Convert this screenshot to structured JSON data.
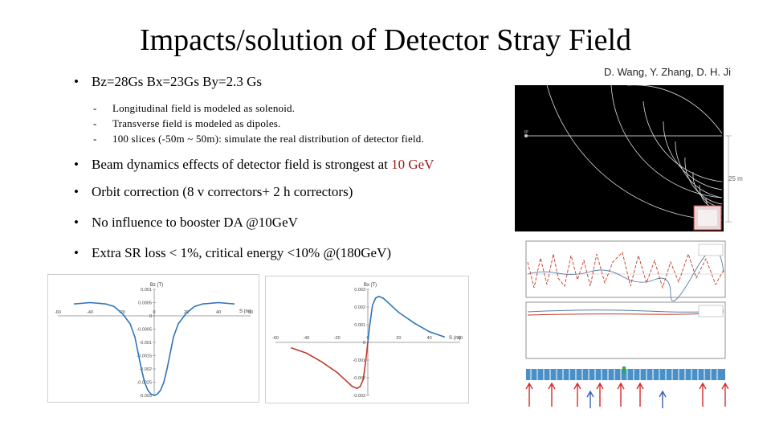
{
  "slide": {
    "title": "Impacts/solution of Detector Stray Field",
    "authors": "D. Wang, Y. Zhang, D. H. Ji",
    "bullet_top": "Bz=28Gs Bx=23Gs By=2.3 Gs",
    "subitems": [
      "Longitudinal field is modeled as solenoid.",
      "Transverse field is modeled as dipoles.",
      "100 slices (-50m ~ 50m): simulate the real distribution of detector field."
    ],
    "bullets": [
      {
        "pre": "Beam dynamics effects of detector field is strongest at ",
        "highlight": "10 GeV"
      },
      {
        "text": "Orbit correction (8 v correctors+ 2 h correctors)"
      },
      {
        "text": "No influence to booster DA @10GeV"
      },
      {
        "text": "Extra SR loss < 1%, critical energy <10% @(180GeV)"
      }
    ],
    "field_map": {
      "scale_label": "25 m",
      "marker_label": "IP"
    }
  },
  "chart_data": [
    {
      "type": "line",
      "title": "Bz (T)",
      "xlabel": "S (m)",
      "ylabel": "",
      "x_ticks": [
        -60,
        -40,
        -20,
        0,
        20,
        40,
        60
      ],
      "y_ticks": [
        "0.001",
        "0.0005",
        "0",
        "-0.0005",
        "-0.001",
        "-0.0015",
        "-0.002",
        "-0.0025",
        "-0.003"
      ],
      "xlim": [
        -60,
        60
      ],
      "ylim": [
        -0.003,
        0.001
      ],
      "series": [
        {
          "color": "#2e75b6",
          "x": [
            -50,
            -40,
            -30,
            -25,
            -20,
            -15,
            -12,
            -10,
            -8,
            -6,
            -4,
            -2,
            0,
            2,
            4,
            6,
            8,
            10,
            12,
            15,
            20,
            25,
            30,
            40,
            50
          ],
          "y": [
            0.00045,
            0.0005,
            0.00045,
            0.00035,
            0.0001,
            -0.0003,
            -0.0008,
            -0.0014,
            -0.002,
            -0.0025,
            -0.0028,
            -0.00295,
            -0.003,
            -0.00295,
            -0.0028,
            -0.0025,
            -0.002,
            -0.0014,
            -0.0008,
            -0.0003,
            0.0001,
            0.00035,
            0.00045,
            0.0005,
            0.00045
          ]
        }
      ]
    },
    {
      "type": "line",
      "title": "Bx (T)",
      "xlabel": "S (m)",
      "ylabel": "",
      "x_ticks": [
        -60,
        -40,
        -20,
        0,
        20,
        40,
        60
      ],
      "y_ticks": [
        "0.003",
        "0.002",
        "0.001",
        "0",
        "-0.001",
        "-0.002",
        "-0.003"
      ],
      "xlim": [
        -60,
        60
      ],
      "ylim": [
        -0.003,
        0.003
      ],
      "series": [
        {
          "color": "#c0392b",
          "x": [
            -50,
            -40,
            -30,
            -20,
            -15,
            -10,
            -7,
            -5,
            -3,
            -1,
            0
          ],
          "y": [
            -0.0003,
            -0.0006,
            -0.0011,
            -0.0017,
            -0.0021,
            -0.0025,
            -0.0026,
            -0.0025,
            -0.0021,
            -0.0008,
            0
          ]
        },
        {
          "color": "#2e75b6",
          "x": [
            0,
            1,
            3,
            5,
            7,
            10,
            15,
            20,
            30,
            40,
            50
          ],
          "y": [
            0,
            0.0008,
            0.0021,
            0.0025,
            0.0026,
            0.0025,
            0.0021,
            0.0017,
            0.0011,
            0.0006,
            0.0003
          ]
        }
      ]
    }
  ]
}
